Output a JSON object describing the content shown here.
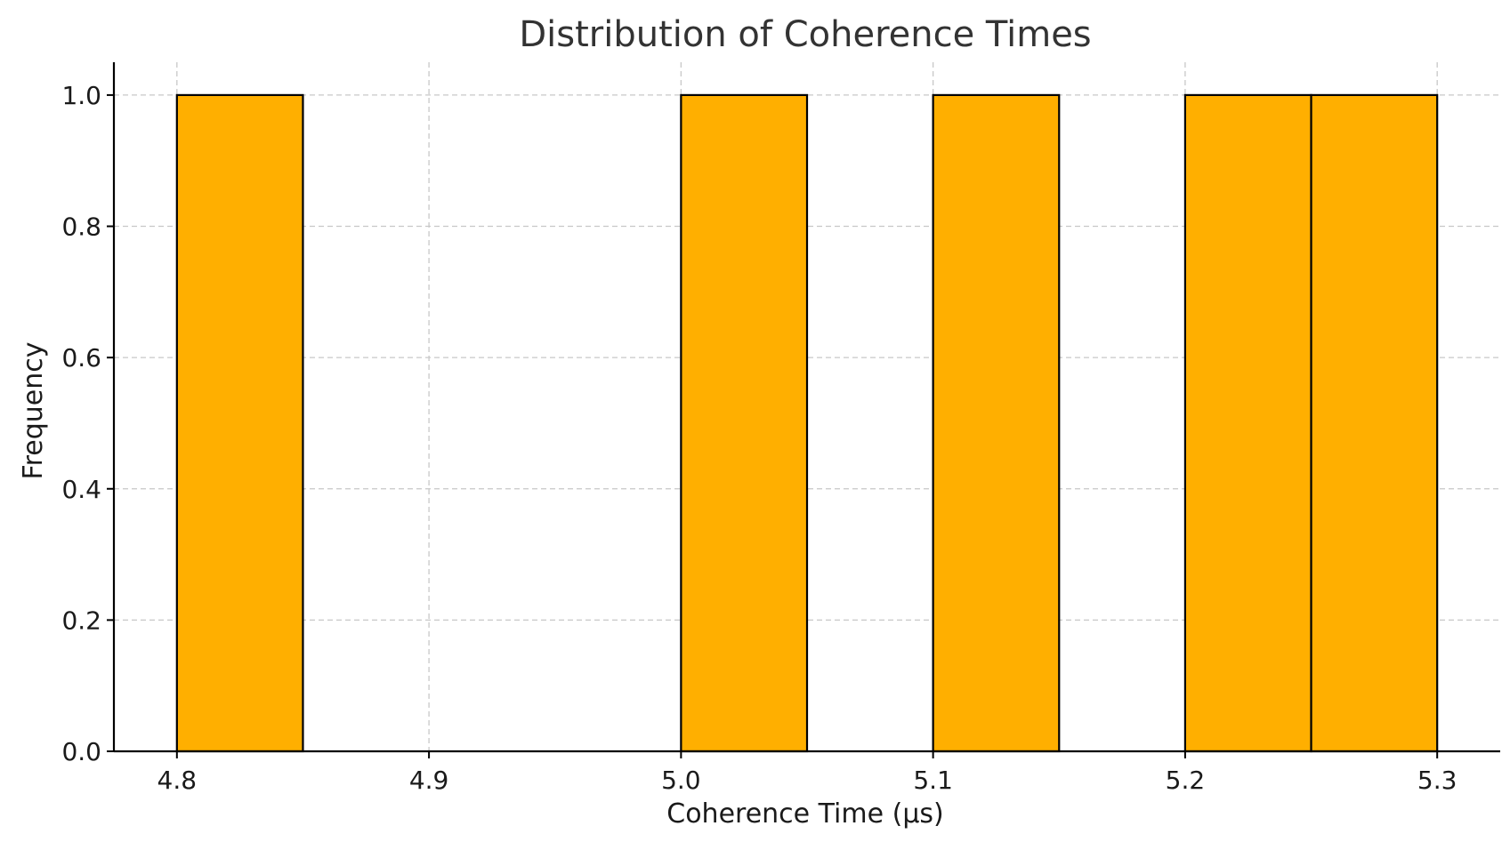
{
  "chart_data": {
    "type": "histogram",
    "title": "Distribution of Coherence Times",
    "xlabel": "Coherence Time (µs)",
    "ylabel": "Frequency",
    "xlim": [
      4.775,
      5.325
    ],
    "ylim": [
      0,
      1.05
    ],
    "x_ticks": [
      "4.8",
      "4.9",
      "5.0",
      "5.1",
      "5.2",
      "5.3"
    ],
    "y_ticks": [
      "0.0",
      "0.2",
      "0.4",
      "0.6",
      "0.8",
      "1.0"
    ],
    "bins": [
      {
        "start": 4.8,
        "end": 4.85,
        "count": 1
      },
      {
        "start": 4.85,
        "end": 4.9,
        "count": 0
      },
      {
        "start": 4.9,
        "end": 4.95,
        "count": 0
      },
      {
        "start": 4.95,
        "end": 5.0,
        "count": 0
      },
      {
        "start": 5.0,
        "end": 5.05,
        "count": 1
      },
      {
        "start": 5.05,
        "end": 5.1,
        "count": 0
      },
      {
        "start": 5.1,
        "end": 5.15,
        "count": 1
      },
      {
        "start": 5.15,
        "end": 5.2,
        "count": 0
      },
      {
        "start": 5.2,
        "end": 5.25,
        "count": 1
      },
      {
        "start": 5.25,
        "end": 5.3,
        "count": 1
      }
    ],
    "bar_color": "#FFAF00",
    "edge_color": "#000000",
    "grid": true,
    "grid_color": "#c8c8c8"
  }
}
